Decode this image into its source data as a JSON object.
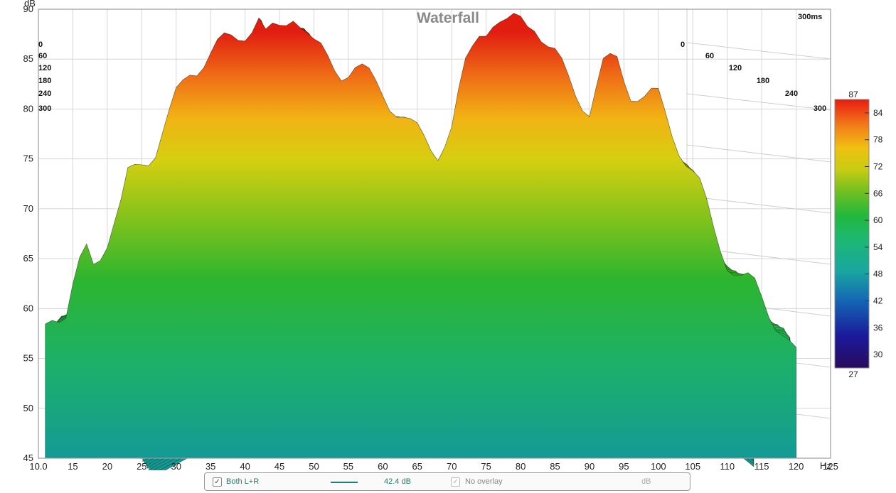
{
  "chart_data": {
    "type": "waterfall",
    "title": "Waterfall",
    "y_unit": "dB",
    "x_unit": "Hz",
    "time_window_label": "300ms",
    "xlim": [
      10,
      125
    ],
    "ylim": [
      45,
      90
    ],
    "x_ticks": [
      10,
      15,
      20,
      25,
      30,
      35,
      40,
      45,
      50,
      55,
      60,
      65,
      70,
      75,
      80,
      85,
      90,
      95,
      100,
      105,
      110,
      115,
      120,
      125
    ],
    "x_tick_labels": [
      "10.0",
      "15",
      "20",
      "25",
      "30",
      "35",
      "40",
      "45",
      "50",
      "55",
      "60",
      "65",
      "70",
      "75",
      "80",
      "85",
      "90",
      "95",
      "100",
      "105",
      "110",
      "115",
      "120",
      "125"
    ],
    "y_ticks": [
      45,
      50,
      55,
      60,
      65,
      70,
      75,
      80,
      85,
      90
    ],
    "time_ticks_ms": [
      0,
      60,
      120,
      180,
      240,
      300
    ],
    "time_range_ms": [
      0,
      300
    ],
    "colorbar": {
      "min": 27,
      "max": 87,
      "ticks": [
        30,
        36,
        42,
        48,
        54,
        60,
        66,
        72,
        78,
        84
      ],
      "min_label": "27",
      "max_label": "87"
    },
    "front_slice_0ms": {
      "freq": [
        11,
        12,
        14,
        16,
        17,
        18,
        20,
        22,
        23,
        24,
        25,
        27,
        29,
        30,
        32,
        34,
        36,
        38,
        40,
        42,
        43,
        45,
        47,
        48,
        50,
        52,
        54,
        56,
        58,
        60,
        62,
        64,
        66,
        68,
        70,
        72,
        74,
        76,
        78,
        80,
        82,
        84,
        86,
        88,
        90,
        92,
        94,
        96,
        98,
        100,
        102,
        104,
        106,
        108,
        110,
        112,
        114,
        116,
        118,
        120
      ],
      "db": [
        59,
        60,
        59,
        64,
        66,
        65,
        67,
        70,
        73,
        74,
        75,
        76,
        79,
        81,
        84,
        85,
        86,
        87,
        88,
        89,
        87,
        88,
        90,
        89,
        86,
        85,
        84,
        84,
        83,
        82,
        80,
        78,
        77,
        76,
        78,
        84,
        88,
        89,
        88,
        89,
        89,
        86,
        84,
        82,
        80,
        84,
        85,
        82,
        81,
        81,
        78,
        75,
        72,
        68,
        65,
        63,
        62,
        60,
        58,
        55
      ]
    },
    "back_slice_300ms": {
      "freq": [
        11,
        14,
        17,
        20,
        24,
        28,
        32,
        36,
        40,
        44,
        48,
        52,
        56,
        60,
        64,
        68,
        72,
        76,
        80,
        84,
        88,
        92,
        96,
        100,
        104,
        108,
        112,
        116,
        120
      ],
      "db": [
        46,
        47,
        48,
        49,
        52,
        53,
        55,
        57,
        58,
        54,
        60,
        57,
        58,
        55,
        51,
        52,
        51,
        54,
        55,
        52,
        53,
        54,
        55,
        52,
        50,
        48,
        46,
        45,
        45
      ]
    }
  },
  "legend": {
    "channel_label": "Both L+R",
    "level": "42.4 dB",
    "overlay_label": "No overlay",
    "unit": "dB"
  }
}
